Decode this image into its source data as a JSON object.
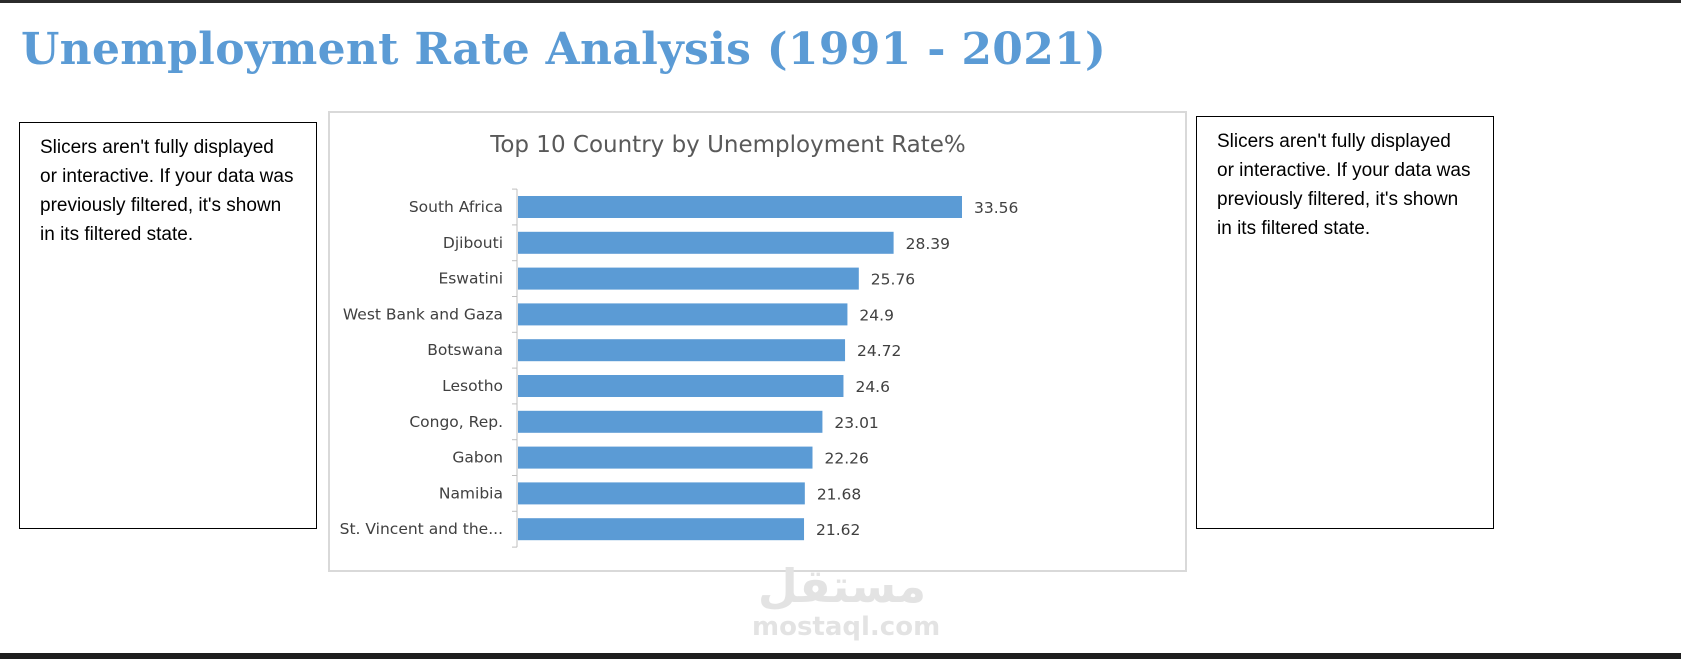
{
  "page": {
    "title": "Unemployment Rate Analysis (1991 - 2021)",
    "slicer_message": "Slicers aren't fully displayed or interactive. If your data was previously filtered, it's shown in its filtered state."
  },
  "watermark": {
    "arabic": "مستقل",
    "latin": "mostaql.com"
  },
  "colors": {
    "title": "#5b9bd5",
    "bar": "#5b9bd5",
    "axis": "#bfbfbf",
    "label_text": "#404040",
    "chart_title": "#595959"
  },
  "chart_data": {
    "type": "bar",
    "orientation": "horizontal",
    "title": "Top 10 Country by Unemployment Rate%",
    "categories": [
      "South Africa",
      "Djibouti",
      "Eswatini",
      "West Bank and Gaza",
      "Botswana",
      "Lesotho",
      "Congo, Rep.",
      "Gabon",
      "Namibia",
      "St. Vincent and the..."
    ],
    "values": [
      33.56,
      28.39,
      25.76,
      24.9,
      24.72,
      24.6,
      23.01,
      22.26,
      21.68,
      21.62
    ],
    "data_labels": [
      "33.56",
      "28.39",
      "25.76",
      "24.9",
      "24.72",
      "24.6",
      "23.01",
      "22.26",
      "21.68",
      "21.62"
    ],
    "xlim": [
      0,
      40
    ],
    "grid": false,
    "legend": "none"
  }
}
